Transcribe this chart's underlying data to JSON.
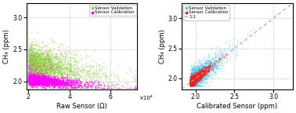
{
  "left_plot": {
    "xlabel": "Raw Sensor (Ω)",
    "ylabel": "CH₄ (ppm)",
    "xlim": [
      19000,
      73000
    ],
    "ylim": [
      1.88,
      3.22
    ],
    "xticks": [
      20000,
      40000,
      60000
    ],
    "yticks": [
      2.0,
      2.5,
      3.0
    ],
    "xscale_label": "×10⁴",
    "legend": [
      "Sensor Validation",
      "Sensor Calibration"
    ],
    "color_validation": "#90cc40",
    "color_calibration": "#ff00ff"
  },
  "right_plot": {
    "xlabel": "Calibrated Sensor (ppm)",
    "ylabel": "CH₄ (ppm)",
    "xlim": [
      1.82,
      3.25
    ],
    "ylim": [
      1.82,
      3.25
    ],
    "xticks": [
      2.0,
      2.5,
      3.0
    ],
    "yticks": [
      2.0,
      2.5,
      3.0
    ],
    "legend": [
      "Sensor Validation",
      "Sensor Calibration",
      "1:1"
    ],
    "color_validation": "#55ccee",
    "color_calibration": "#ee2222",
    "line_color": "#aaaaaa"
  },
  "background_color": "#ffffff",
  "grid_color": "#d8d8d8",
  "font_size": 6.0,
  "marker_size": 1.2
}
